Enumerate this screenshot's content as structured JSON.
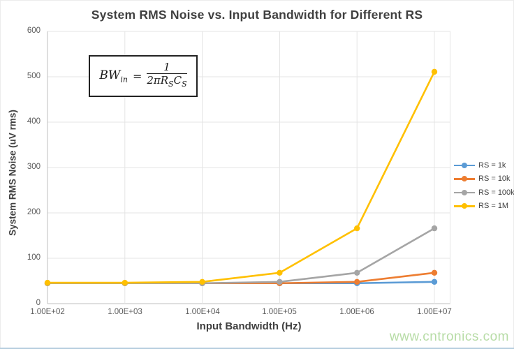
{
  "page": {
    "title": "System RMS Noise vs. Input Bandwidth for Different RS",
    "watermark": "www.cntronics.com",
    "watermark_color": "#b7dcA6",
    "accent_axis_color": "#bfbfbf",
    "gridline_color": "#e4e4e4"
  },
  "formula": {
    "lhs_base": "BW",
    "lhs_sub": "in",
    "equals": "=",
    "numerator": "1",
    "den_term1_base": "2πR",
    "den_term1_sub": "S",
    "den_term2_base": "C",
    "den_term2_sub": "S"
  },
  "chart_data": {
    "type": "line",
    "title": "System RMS Noise vs. Input Bandwidth for Different RS",
    "xlabel": "Input Bandwidth (Hz)",
    "ylabel": "System RMS Noise (uV rms)",
    "x_scale": "log",
    "x": [
      100,
      1000,
      10000,
      100000,
      1000000,
      10000000
    ],
    "x_tick_labels": [
      "1.00E+02",
      "1.00E+03",
      "1.00E+04",
      "1.00E+05",
      "1.00E+06",
      "1.00E+07"
    ],
    "y_ticks": [
      0,
      100,
      200,
      300,
      400,
      500,
      600
    ],
    "y_tick_labels_top_down": [
      "600",
      "500",
      "400",
      "300",
      "200",
      "100",
      "0"
    ],
    "ylim": [
      0,
      600
    ],
    "grid": true,
    "legend_position": "right",
    "marker": "circle",
    "series": [
      {
        "name": "RS = 1k",
        "color": "#5B9BD5",
        "values": [
          45,
          45,
          45,
          45,
          45,
          48
        ]
      },
      {
        "name": "RS = 10k",
        "color": "#ED7D31",
        "values": [
          45,
          45,
          45,
          45,
          48,
          68
        ]
      },
      {
        "name": "RS = 100k",
        "color": "#A5A5A5",
        "values": [
          45,
          45,
          45,
          48,
          68,
          166
        ]
      },
      {
        "name": "RS = 1M",
        "color": "#FFC000",
        "values": [
          46,
          46,
          48,
          68,
          166,
          511
        ]
      }
    ]
  }
}
